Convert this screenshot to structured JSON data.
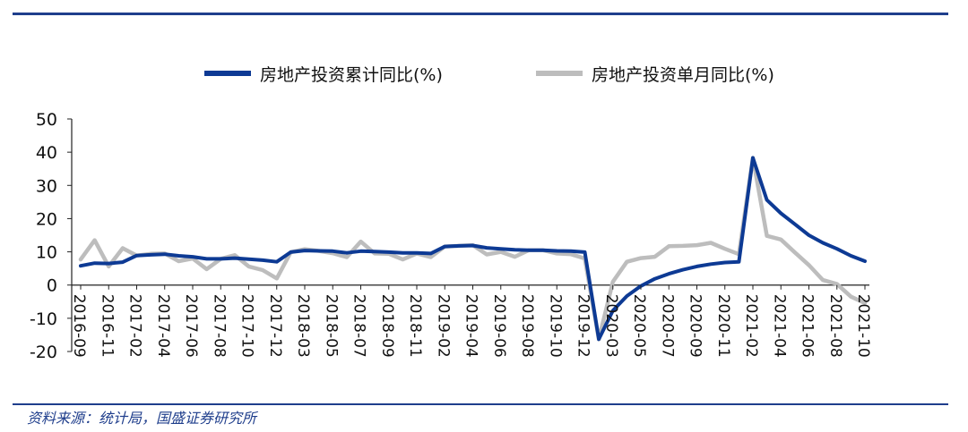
{
  "chart_data": {
    "type": "line",
    "title": "",
    "xlabel": "",
    "ylabel": "",
    "ylim": [
      -20,
      50
    ],
    "yticks": [
      50,
      40,
      30,
      20,
      10,
      0,
      -10,
      -20
    ],
    "grid": false,
    "legend_position": "top",
    "x": [
      "2016-09",
      "2016-10",
      "2016-11",
      "2016-12",
      "2017-02",
      "2017-03",
      "2017-04",
      "2017-05",
      "2017-06",
      "2017-07",
      "2017-08",
      "2017-09",
      "2017-10",
      "2017-11",
      "2017-12",
      "2018-02",
      "2018-03",
      "2018-04",
      "2018-05",
      "2018-06",
      "2018-07",
      "2018-08",
      "2018-09",
      "2018-10",
      "2018-11",
      "2018-12",
      "2019-02",
      "2019-03",
      "2019-04",
      "2019-05",
      "2019-06",
      "2019-07",
      "2019-08",
      "2019-09",
      "2019-10",
      "2019-11",
      "2019-12",
      "2020-02",
      "2020-03",
      "2020-04",
      "2020-05",
      "2020-06",
      "2020-07",
      "2020-08",
      "2020-09",
      "2020-10",
      "2020-11",
      "2020-12",
      "2021-02",
      "2021-03",
      "2021-04",
      "2021-05",
      "2021-06",
      "2021-07",
      "2021-08",
      "2021-09",
      "2021-10"
    ],
    "x_tick_labels": [
      "2016-09",
      "2016-11",
      "2017-02",
      "2017-04",
      "2017-06",
      "2017-08",
      "2017-10",
      "2017-12",
      "2018-03",
      "2018-05",
      "2018-07",
      "2018-09",
      "2018-11",
      "2019-02",
      "2019-04",
      "2019-06",
      "2019-08",
      "2019-10",
      "2019-12",
      "2020-03",
      "2020-05",
      "2020-07",
      "2020-09",
      "2020-11",
      "2021-02",
      "2021-04",
      "2021-06",
      "2021-08",
      "2021-10"
    ],
    "series": [
      {
        "name": "房地产投资累计同比(%)",
        "color": "#0d3a94",
        "values": [
          5.8,
          6.6,
          6.5,
          6.9,
          8.9,
          9.1,
          9.3,
          8.8,
          8.5,
          7.9,
          7.9,
          8.1,
          7.8,
          7.5,
          7.0,
          9.9,
          10.4,
          10.3,
          10.2,
          9.7,
          10.2,
          10.1,
          9.9,
          9.7,
          9.7,
          9.5,
          11.6,
          11.8,
          11.9,
          11.2,
          10.9,
          10.6,
          10.5,
          10.5,
          10.3,
          10.2,
          9.9,
          -16.3,
          -7.7,
          -3.3,
          -0.3,
          1.9,
          3.4,
          4.6,
          5.6,
          6.3,
          6.8,
          7.0,
          38.3,
          25.6,
          21.6,
          18.3,
          15.0,
          12.7,
          10.9,
          8.8,
          7.2
        ]
      },
      {
        "name": "房地产投资单月同比(%)",
        "color": "#bdbdbd",
        "values": [
          7.7,
          13.5,
          5.6,
          11.1,
          8.9,
          9.4,
          9.5,
          7.2,
          8.0,
          4.8,
          7.9,
          9.0,
          5.6,
          4.5,
          2.0,
          9.9,
          10.8,
          10.3,
          9.6,
          8.4,
          13.1,
          9.5,
          9.4,
          7.7,
          9.5,
          8.4,
          11.6,
          11.8,
          12.0,
          9.2,
          10.0,
          8.5,
          10.5,
          10.5,
          9.5,
          9.3,
          8.0,
          -16.3,
          1.0,
          7.0,
          8.1,
          8.5,
          11.7,
          11.8,
          12.0,
          12.7,
          10.9,
          9.3,
          38.3,
          14.8,
          13.7,
          9.8,
          6.0,
          1.5,
          0.3,
          -3.5,
          -5.4
        ]
      }
    ]
  },
  "source": "资料来源：统计局，国盛证券研究所"
}
